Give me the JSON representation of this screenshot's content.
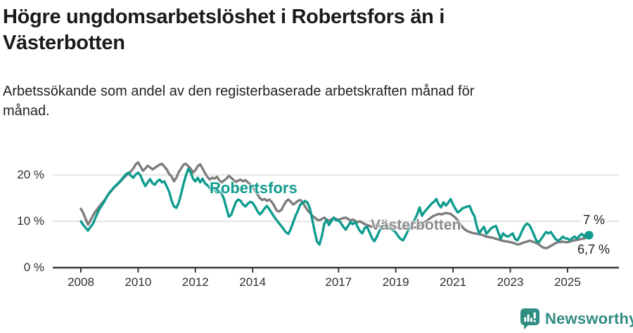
{
  "header": {
    "title_line1": "Högre ungdomsarbetslöshet i Robertsfors än i",
    "title_line2": "Västerbotten",
    "subtitle_line1": "Arbetssökande som andel av den registerbaserade arbetskraften månad för",
    "subtitle_line2": "månad."
  },
  "chart_data": {
    "type": "line",
    "unit": "%",
    "x_start": {
      "year": 2008,
      "month": 1
    },
    "x_end": {
      "year": 2025,
      "month": 10
    },
    "points_per_year": 12,
    "ylim": [
      0,
      24
    ],
    "y_gridlines": [
      10,
      20
    ],
    "y_tick_labels": [
      "20 %",
      "10 %",
      "0 %"
    ],
    "y_tick_values": [
      20,
      10,
      0
    ],
    "x_tick_years": [
      2008,
      2010,
      2012,
      2014,
      2017,
      2019,
      2021,
      2023,
      2025
    ],
    "grid_color": "#dcdcdc",
    "axis_color": "#3a3a3a",
    "series": [
      {
        "name": "Robertsfors",
        "color": "#0f9b8e",
        "end_label": "7 %",
        "end_value": 7.0,
        "values": [
          10.0,
          9.2,
          8.6,
          8.0,
          8.8,
          9.4,
          10.6,
          11.8,
          12.8,
          13.6,
          14.4,
          15.4,
          16.2,
          16.8,
          17.4,
          17.9,
          18.4,
          19.0,
          19.6,
          20.2,
          20.5,
          19.8,
          19.4,
          20.1,
          20.5,
          19.9,
          18.6,
          17.6,
          18.4,
          19.1,
          18.2,
          17.9,
          18.6,
          19.0,
          18.4,
          18.6,
          17.5,
          16.4,
          14.5,
          13.2,
          12.9,
          14.0,
          15.9,
          18.0,
          19.8,
          21.3,
          20.6,
          19.2,
          18.6,
          19.4,
          18.4,
          19.2,
          18.2,
          17.8,
          17.2,
          16.6,
          16.9,
          16.2,
          16.6,
          16.0,
          14.8,
          12.9,
          11.0,
          11.4,
          12.8,
          14.2,
          14.7,
          14.4,
          13.6,
          13.2,
          13.8,
          14.2,
          14.0,
          13.2,
          12.2,
          11.5,
          12.0,
          12.8,
          13.3,
          12.6,
          11.8,
          11.0,
          10.3,
          9.6,
          9.0,
          8.3,
          7.6,
          7.3,
          8.4,
          9.8,
          11.2,
          12.3,
          13.6,
          14.0,
          14.4,
          14.0,
          12.8,
          10.4,
          7.8,
          5.6,
          5.0,
          6.8,
          9.4,
          10.3,
          9.2,
          10.0,
          10.8,
          10.2,
          10.2,
          9.6,
          8.8,
          8.2,
          9.0,
          9.8,
          9.4,
          9.9,
          8.8,
          7.9,
          7.4,
          8.6,
          8.8,
          7.6,
          6.4,
          5.7,
          6.6,
          7.8,
          8.6,
          8.9,
          8.5,
          8.7,
          8.3,
          8.0,
          7.6,
          6.8,
          6.2,
          5.9,
          6.8,
          7.9,
          8.8,
          9.6,
          10.4,
          11.5,
          13.0,
          11.2,
          12.0,
          12.6,
          13.2,
          13.8,
          14.2,
          14.8,
          13.6,
          13.0,
          14.1,
          13.4,
          14.0,
          14.8,
          13.6,
          12.7,
          11.9,
          12.3,
          12.8,
          13.0,
          13.2,
          13.3,
          12.0,
          11.1,
          8.8,
          7.4,
          8.2,
          8.8,
          7.3,
          7.9,
          8.5,
          8.8,
          9.0,
          7.6,
          6.2,
          7.4,
          6.9,
          6.7,
          7.0,
          7.4,
          6.2,
          5.9,
          6.8,
          8.0,
          9.0,
          9.5,
          9.2,
          8.2,
          7.0,
          5.8,
          5.5,
          6.2,
          7.0,
          7.7,
          7.4,
          7.7,
          6.9,
          6.2,
          5.8,
          6.1,
          6.7,
          6.3,
          6.3,
          5.9,
          6.4,
          6.7,
          6.2,
          6.9,
          7.3,
          6.7,
          7.4,
          7.0
        ]
      },
      {
        "name": "Västerbotten",
        "color": "#7d7d7d",
        "end_label": "6,7 %",
        "end_value": 6.7,
        "values": [
          12.7,
          11.8,
          10.5,
          9.3,
          10.2,
          11.2,
          12.0,
          12.7,
          13.4,
          14.0,
          14.6,
          15.4,
          16.1,
          16.7,
          17.3,
          17.8,
          18.3,
          18.8,
          19.4,
          19.9,
          20.2,
          20.8,
          21.4,
          22.3,
          22.7,
          21.8,
          20.9,
          21.4,
          22.0,
          21.6,
          21.2,
          21.5,
          21.9,
          22.2,
          22.4,
          21.8,
          21.2,
          20.2,
          19.7,
          18.6,
          19.4,
          20.6,
          21.4,
          22.2,
          22.4,
          21.9,
          21.4,
          20.5,
          21.0,
          21.9,
          22.3,
          21.4,
          20.4,
          19.6,
          19.0,
          19.4,
          19.2,
          19.6,
          18.9,
          18.4,
          18.8,
          19.2,
          19.8,
          19.4,
          18.9,
          18.5,
          18.8,
          19.0,
          18.6,
          18.9,
          18.4,
          18.0,
          17.4,
          16.6,
          15.8,
          15.0,
          14.6,
          14.8,
          14.4,
          14.7,
          14.2,
          13.4,
          12.4,
          12.1,
          12.4,
          13.4,
          14.3,
          14.7,
          14.2,
          13.6,
          14.0,
          14.4,
          14.6,
          14.0,
          13.2,
          12.4,
          11.8,
          11.2,
          10.8,
          10.4,
          10.2,
          10.5,
          10.8,
          10.4,
          10.1,
          10.4,
          10.7,
          10.5,
          10.3,
          10.5,
          10.7,
          10.8,
          10.5,
          10.2,
          10.4,
          10.1,
          9.8,
          10.0,
          9.7,
          9.4,
          9.2,
          9.0,
          8.8,
          9.1,
          9.3,
          9.0,
          8.8,
          9.0,
          9.2,
          8.9,
          8.7,
          8.9,
          8.8,
          8.6,
          8.4,
          8.6,
          8.8,
          8.5,
          8.7,
          8.9,
          8.6,
          8.8,
          9.0,
          9.3,
          9.8,
          10.1,
          10.5,
          10.9,
          11.2,
          11.4,
          11.6,
          11.5,
          11.6,
          11.8,
          11.7,
          11.6,
          11.2,
          10.8,
          10.2,
          9.4,
          8.7,
          8.2,
          7.9,
          7.7,
          7.5,
          7.4,
          7.3,
          7.2,
          7.1,
          6.9,
          6.7,
          6.6,
          6.5,
          6.4,
          6.2,
          6.1,
          5.9,
          5.8,
          5.7,
          5.6,
          5.5,
          5.4,
          5.2,
          5.0,
          5.1,
          5.3,
          5.5,
          5.6,
          5.8,
          5.7,
          5.5,
          5.3,
          5.0,
          4.6,
          4.3,
          4.2,
          4.4,
          4.7,
          5.0,
          5.3,
          5.5,
          5.5,
          5.6,
          5.5,
          5.5,
          5.6,
          5.8,
          5.9,
          6.0,
          6.1,
          6.2,
          6.3,
          6.5,
          6.7
        ]
      }
    ]
  },
  "annotations": {
    "robertsfors_label": "Robertsfors",
    "vasterbotten_label": "Västerbotten",
    "end_label_top": "7 %",
    "end_label_bottom": "6,7 %"
  },
  "footer": {
    "brand": "Newsworthy",
    "brand_color": "#338b81"
  }
}
